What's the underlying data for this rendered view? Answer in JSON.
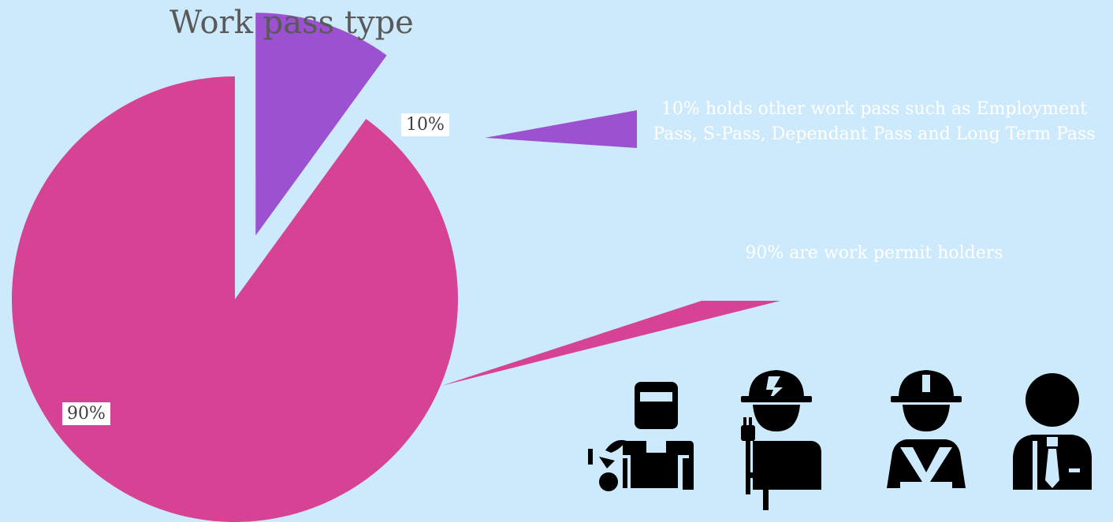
{
  "chart_data": {
    "type": "pie",
    "title": "Work pass type",
    "slices": [
      {
        "label": "Work permit holders",
        "value": 90,
        "display": "90%",
        "color": "#d64294"
      },
      {
        "label": "Other work pass",
        "value": 10,
        "display": "10%",
        "color": "#9b51d0"
      }
    ]
  },
  "callouts": {
    "other": "10% holds other work pass such as Employment Pass, S-Pass, Dependant Pass and Long Term Pass",
    "permit": "90% are work permit holders"
  },
  "icons": [
    "welder-icon",
    "electrician-icon",
    "construction-worker-icon",
    "office-worker-icon"
  ]
}
